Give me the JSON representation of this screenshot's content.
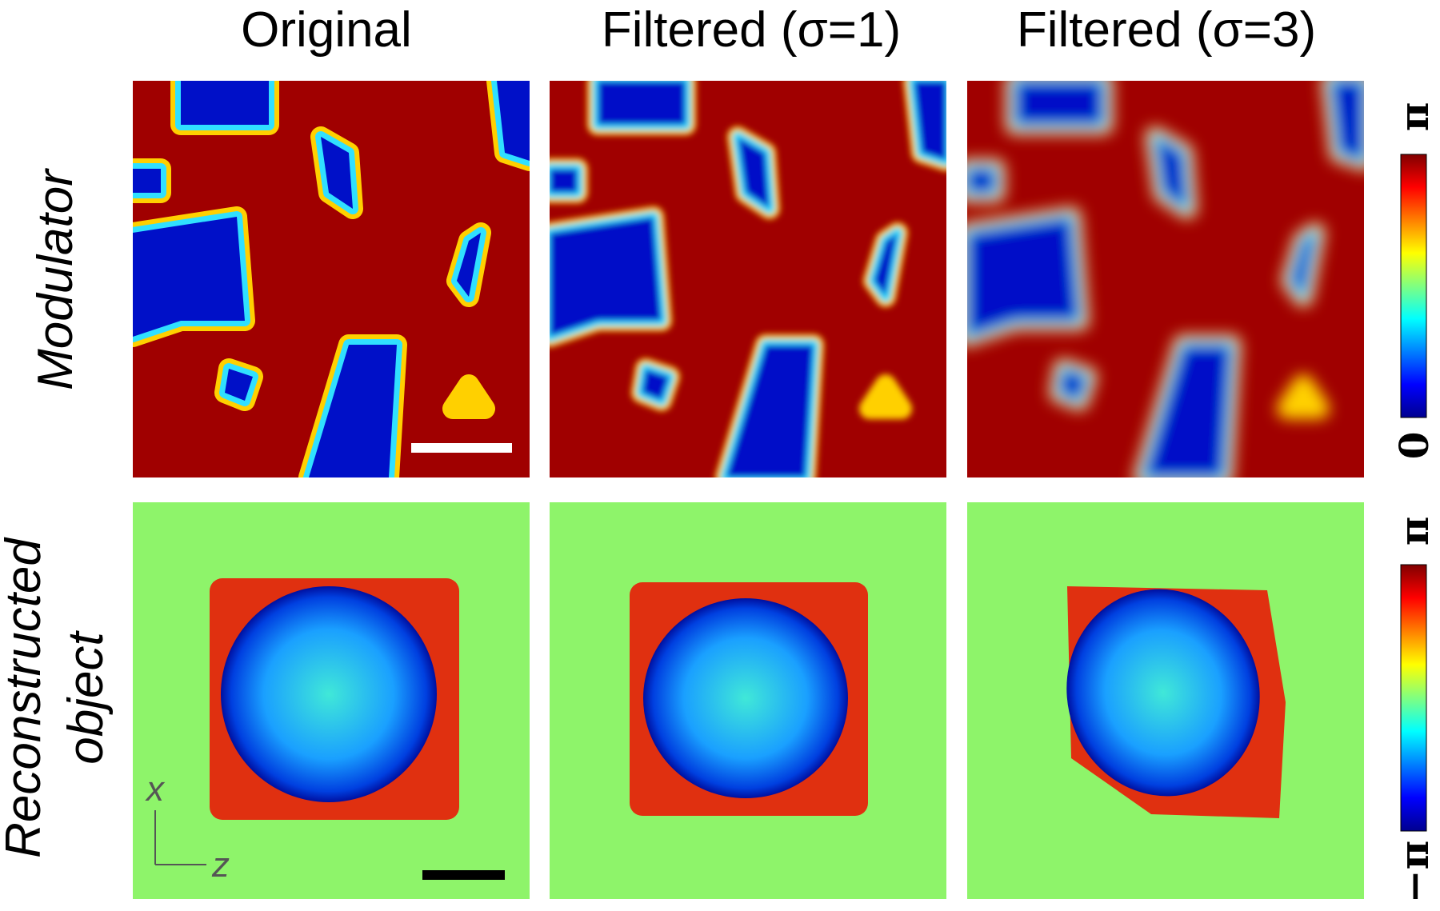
{
  "columns": [
    "Original",
    "Filtered (σ=1)",
    "Filtered (σ=3)"
  ],
  "rows": [
    {
      "label": "Modulator"
    },
    {
      "label_lines": [
        "Reconstructed",
        "object"
      ]
    }
  ],
  "colorbars": [
    {
      "max": "π",
      "min": "0"
    },
    {
      "max": "π",
      "min": "−π"
    }
  ],
  "axes": {
    "vertical": "x",
    "horizontal": "z"
  }
}
